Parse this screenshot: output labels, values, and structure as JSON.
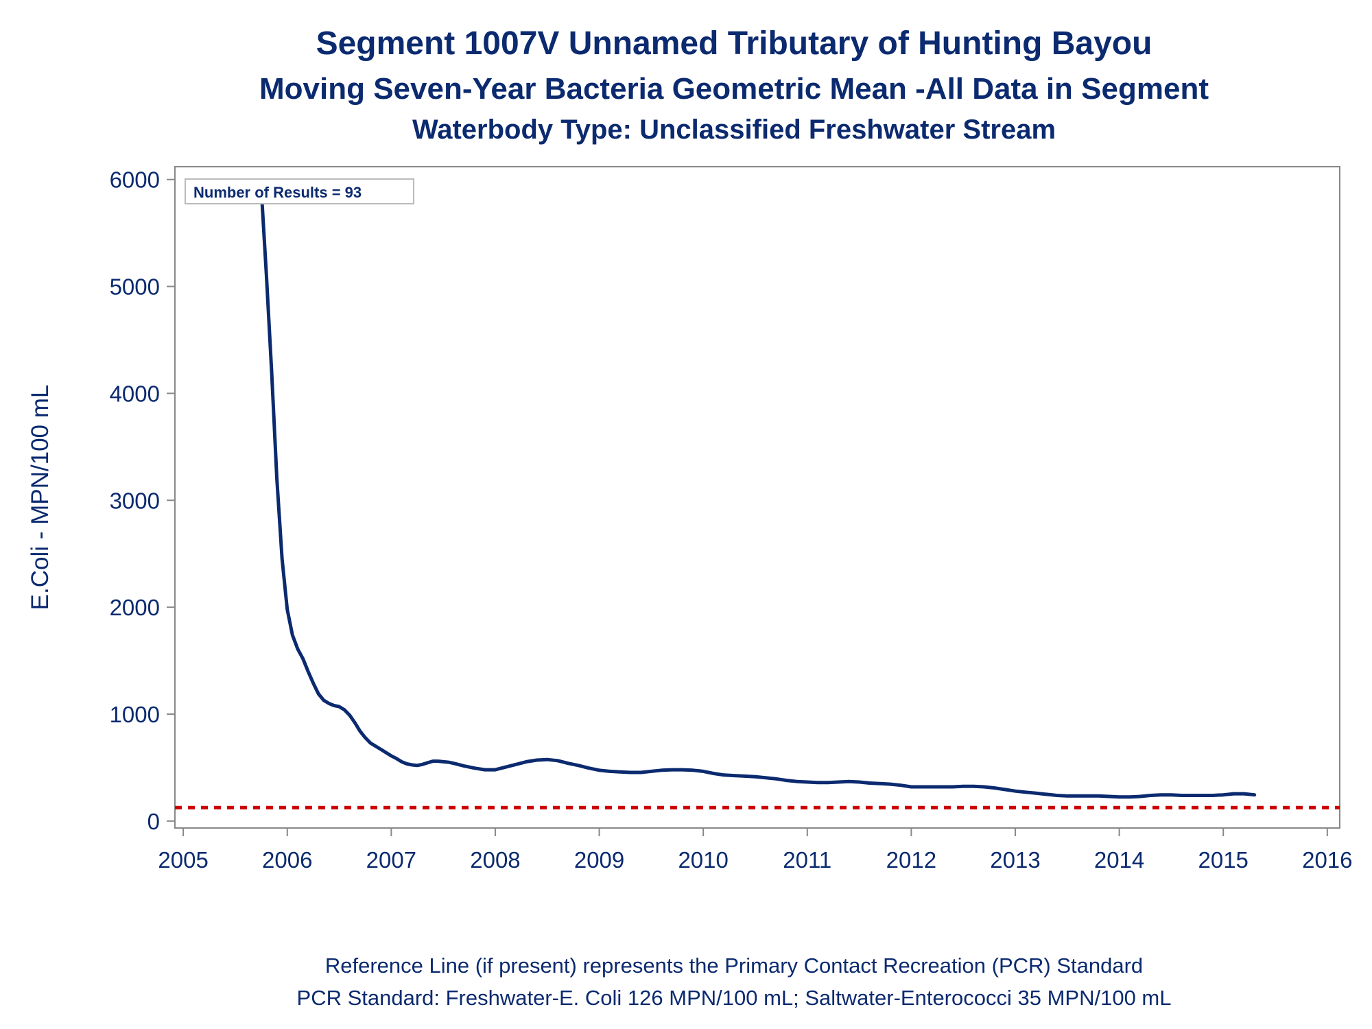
{
  "titles": {
    "line1": "Segment 1007V   Unnamed Tributary of Hunting Bayou",
    "line2": "Moving Seven-Year Bacteria Geometric Mean -All Data in Segment",
    "line3": "Waterbody Type: Unclassified Freshwater Stream"
  },
  "footnotes": {
    "line1": "Reference Line (if present) represents the Primary Contact Recreation (PCR) Standard",
    "line2": "PCR Standard: Freshwater-E. Coli 126 MPN/100 mL; Saltwater-Enterococci 35 MPN/100 mL"
  },
  "colors": {
    "series": "#0b2a6f",
    "reference": "#cc0000",
    "frame": "#888888"
  },
  "chart_data": {
    "type": "line",
    "title": "Segment 1007V   Unnamed Tributary of Hunting Bayou",
    "ylabel": "E.Coli - MPN/100 mL",
    "xlabel": "",
    "xlim": [
      2004.92,
      2016.12
    ],
    "ylim": [
      -65,
      6120
    ],
    "x_ticks": [
      2005,
      2006,
      2007,
      2008,
      2009,
      2010,
      2011,
      2012,
      2013,
      2014,
      2015,
      2016
    ],
    "y_ticks": [
      0,
      1000,
      2000,
      3000,
      4000,
      5000,
      6000
    ],
    "grid": false,
    "annotation": "Number of Results = 93",
    "reference_line": {
      "value": 126,
      "style": "dashed"
    },
    "series": [
      {
        "x": [
          2005.75,
          2005.8,
          2005.85,
          2005.9,
          2005.95,
          2006.0,
          2006.05,
          2006.1,
          2006.15,
          2006.2,
          2006.25,
          2006.3,
          2006.35,
          2006.4,
          2006.45,
          2006.5,
          2006.55,
          2006.6,
          2006.65,
          2006.7,
          2006.75,
          2006.8,
          2006.85,
          2006.9,
          2006.95,
          2007.0,
          2007.05,
          2007.1,
          2007.15,
          2007.2,
          2007.25,
          2007.3,
          2007.35,
          2007.4,
          2007.45,
          2007.5,
          2007.55,
          2007.6,
          2007.7,
          2007.8,
          2007.9,
          2008.0,
          2008.1,
          2008.2,
          2008.3,
          2008.4,
          2008.5,
          2008.6,
          2008.7,
          2008.8,
          2008.9,
          2009.0,
          2009.1,
          2009.2,
          2009.3,
          2009.4,
          2009.5,
          2009.6,
          2009.7,
          2009.8,
          2009.9,
          2010.0,
          2010.1,
          2010.2,
          2010.3,
          2010.4,
          2010.5,
          2010.6,
          2010.7,
          2010.8,
          2010.9,
          2011.0,
          2011.1,
          2011.2,
          2011.3,
          2011.4,
          2011.5,
          2011.6,
          2011.7,
          2011.8,
          2011.9,
          2012.0,
          2012.1,
          2012.2,
          2012.3,
          2012.4,
          2012.5,
          2012.6,
          2012.7,
          2012.8,
          2012.9,
          2013.0,
          2013.1,
          2013.2,
          2013.3,
          2013.4,
          2013.5,
          2013.6,
          2013.7,
          2013.8,
          2013.9,
          2014.0,
          2014.1,
          2014.2,
          2014.3,
          2014.4,
          2014.5,
          2014.6,
          2014.7,
          2014.8,
          2014.9,
          2015.0,
          2015.1,
          2015.2,
          2015.3
        ],
        "y": [
          5920,
          5100,
          4200,
          3200,
          2450,
          1980,
          1740,
          1610,
          1520,
          1400,
          1290,
          1190,
          1130,
          1100,
          1080,
          1070,
          1040,
          990,
          920,
          840,
          780,
          730,
          700,
          670,
          640,
          610,
          585,
          555,
          535,
          525,
          520,
          530,
          545,
          560,
          560,
          555,
          550,
          540,
          515,
          495,
          480,
          480,
          505,
          530,
          555,
          570,
          575,
          565,
          540,
          520,
          495,
          475,
          465,
          460,
          455,
          455,
          465,
          475,
          480,
          480,
          475,
          465,
          445,
          430,
          425,
          420,
          415,
          405,
          395,
          380,
          370,
          365,
          360,
          360,
          365,
          370,
          365,
          355,
          350,
          345,
          335,
          320,
          320,
          320,
          320,
          320,
          325,
          325,
          320,
          310,
          295,
          280,
          270,
          260,
          250,
          240,
          235,
          235,
          235,
          235,
          230,
          225,
          225,
          230,
          240,
          245,
          245,
          240,
          240,
          240,
          240,
          245,
          255,
          255,
          245
        ]
      }
    ]
  }
}
